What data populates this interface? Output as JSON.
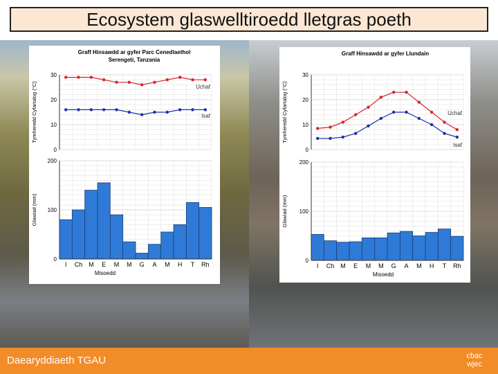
{
  "slide": {
    "title": "Ecosystem glaswelltiroedd lletgras poeth",
    "footer": "Daearyddiaeth TGAU",
    "logo_line1": "cbac",
    "logo_line2": "wjec"
  },
  "colors": {
    "max": "#d8232a",
    "min": "#1f2ea8",
    "bar": "#2f7ad6",
    "footer": "#f28c28"
  },
  "chart_data": [
    {
      "type": "line+bar",
      "title_line1": "Graff Hinsawdd ar gyfer Parc Cenedlaethol",
      "title_line2": "Serengeti, Tanzania",
      "categories": [
        "I",
        "Ch",
        "M",
        "E",
        "M",
        "M",
        "G",
        "A",
        "M",
        "H",
        "T",
        "Rh"
      ],
      "xlabel": "Misoedd",
      "temp_ylabel": "Tymheredd Cyfartalog (°C)",
      "temp_ylim": [
        0,
        30
      ],
      "temp_ticks": [
        "0",
        "10",
        "20",
        "30"
      ],
      "rain_ylabel": "Glawiad (mm)",
      "rain_ylim": [
        0,
        200
      ],
      "rain_ticks": [
        "0",
        "100",
        "200"
      ],
      "max_label": "Uchaf",
      "min_label": "Isaf",
      "max_temp": [
        29,
        29,
        29,
        28,
        27,
        27,
        26,
        27,
        28,
        29,
        28,
        28
      ],
      "min_temp": [
        16,
        16,
        16,
        16,
        16,
        15,
        14,
        15,
        15,
        16,
        16,
        16
      ],
      "rainfall": [
        80,
        100,
        140,
        155,
        90,
        35,
        12,
        30,
        55,
        70,
        115,
        105
      ]
    },
    {
      "type": "line+bar",
      "title_line1": "Graff Hinsawdd ar gyfer Llundain",
      "title_line2": "",
      "categories": [
        "I",
        "Ch",
        "M",
        "E",
        "M",
        "M",
        "G",
        "A",
        "M",
        "H",
        "T",
        "Rh"
      ],
      "xlabel": "Misoedd",
      "temp_ylabel": "Tymheredd Cyfartalog (°C)",
      "temp_ylim": [
        0,
        30
      ],
      "temp_ticks": [
        "0",
        "10",
        "20",
        "30"
      ],
      "rain_ylabel": "Glawiad (mm)",
      "rain_ylim": [
        0,
        200
      ],
      "rain_ticks": [
        "0",
        "100",
        "200"
      ],
      "max_label": "Uchaf",
      "min_label": "Isaf",
      "max_temp": [
        8.5,
        9,
        11,
        14,
        17,
        21,
        23,
        23,
        19,
        15,
        11,
        8
      ],
      "min_temp": [
        4.5,
        4.5,
        5,
        6.5,
        9.5,
        12.5,
        15,
        15,
        12.5,
        10,
        6.5,
        5
      ],
      "rainfall": [
        53,
        40,
        37,
        38,
        46,
        46,
        56,
        59,
        50,
        57,
        64,
        49
      ]
    }
  ]
}
